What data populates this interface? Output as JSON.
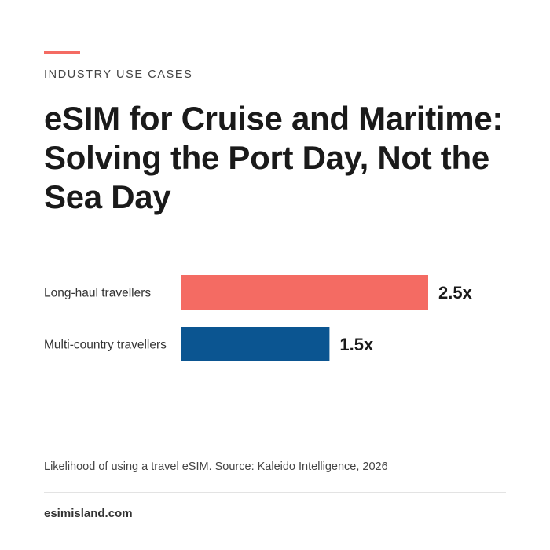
{
  "header": {
    "eyebrow": "INDUSTRY USE CASES",
    "title": "eSIM for Cruise and Maritime: Solving the Port Day, Not the Sea Day"
  },
  "colors": {
    "accent": "#f46b63",
    "series_long_haul": "#f46b63",
    "series_multi_country": "#0b5591"
  },
  "chart_data": {
    "type": "bar",
    "orientation": "horizontal",
    "categories": [
      "Long-haul travellers",
      "Multi-country travellers"
    ],
    "values": [
      2.5,
      1.5
    ],
    "value_labels": [
      "2.5x",
      "1.5x"
    ],
    "bar_colors": [
      "#f46b63",
      "#0b5591"
    ],
    "xlim": [
      0,
      3
    ],
    "grid": false
  },
  "footer": {
    "caption": "Likelihood of using a travel eSIM. Source: Kaleido Intelligence, 2026",
    "site": "esimisland.com"
  }
}
